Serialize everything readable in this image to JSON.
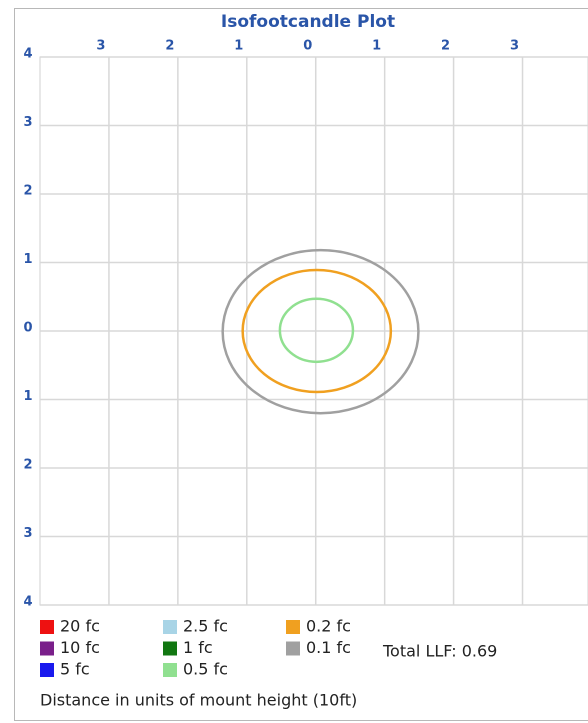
{
  "chart_data": {
    "type": "contour",
    "title": "Isofootcandle Plot",
    "x_label": "Distance in units of mount height (10ft)",
    "annotation": "Total LLF: 0.69",
    "xlim": [
      -4,
      3.95
    ],
    "ylim": [
      -4,
      4
    ],
    "xticks": [
      {
        "value": -3,
        "label": "3"
      },
      {
        "value": -2,
        "label": "2"
      },
      {
        "value": -1,
        "label": "1"
      },
      0,
      1,
      2,
      3
    ],
    "yticks": [
      4,
      3,
      2,
      1,
      0,
      {
        "value": -1,
        "label": "1"
      },
      {
        "value": -2,
        "label": "2"
      },
      {
        "value": -3,
        "label": "3"
      },
      {
        "value": -4,
        "label": "4"
      }
    ],
    "grid": true,
    "series": [
      {
        "name": "20 fc",
        "color": "#ee1111"
      },
      {
        "name": "10 fc",
        "color": "#7a1f8a"
      },
      {
        "name": "5 fc",
        "color": "#1a1aee"
      },
      {
        "name": "2.5 fc",
        "color": "#a8d4e6"
      },
      {
        "name": "1 fc",
        "color": "#117711"
      },
      {
        "name": "0.5 fc",
        "color": "#90e090",
        "xrange": [
          -0.52,
          0.54
        ],
        "yrange": [
          -0.45,
          0.47
        ]
      },
      {
        "name": "0.2 fc",
        "color": "#f0a020",
        "xrange": [
          -1.06,
          1.09
        ],
        "yrange": [
          -0.89,
          0.89
        ]
      },
      {
        "name": "0.1 fc",
        "color": "#a0a0a0",
        "xrange": [
          -1.35,
          1.49
        ],
        "yrange": [
          -1.2,
          1.18
        ]
      }
    ]
  }
}
